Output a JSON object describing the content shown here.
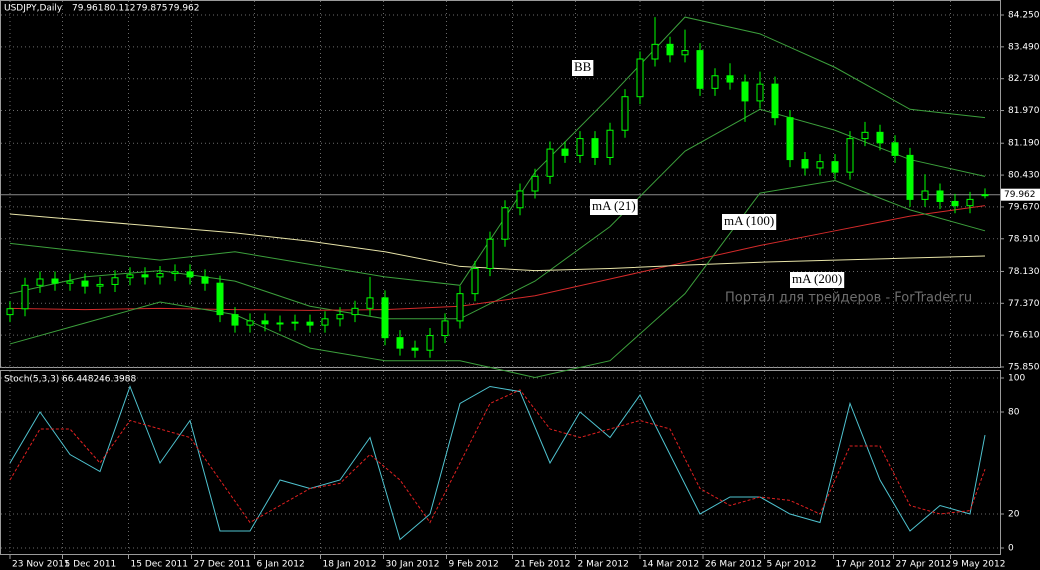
{
  "chart_data": [
    {
      "type": "candlestick",
      "title": "USDJPY,Daily",
      "open": [
        77.1,
        77.24,
        77.8,
        77.95,
        77.85,
        77.9,
        77.78,
        77.82,
        77.98,
        78.05,
        78.0,
        78.08,
        78.12,
        78.0,
        77.85,
        77.1,
        76.85,
        76.95,
        76.88,
        76.9,
        76.92,
        76.85,
        77.0,
        77.1,
        77.25,
        77.5,
        76.55,
        76.3,
        76.25,
        76.6,
        76.95,
        77.6,
        78.2,
        78.9,
        79.65,
        80.05,
        80.4,
        81.05,
        80.9,
        81.3,
        80.85,
        81.5,
        82.3,
        83.2,
        83.55,
        83.3,
        83.4,
        82.5,
        82.8,
        82.65,
        82.2,
        82.6,
        81.8,
        80.8,
        80.6,
        80.75,
        80.5,
        81.3,
        81.45,
        81.2,
        80.9,
        79.85,
        80.05,
        79.8,
        79.7,
        79.961
      ],
      "high": [
        77.42,
        77.98,
        78.13,
        78.13,
        78.08,
        78.08,
        78.0,
        78.16,
        78.23,
        78.23,
        78.26,
        78.3,
        78.3,
        78.18,
        78.03,
        77.28,
        77.13,
        77.13,
        77.08,
        77.1,
        77.1,
        77.18,
        77.28,
        77.43,
        78.0,
        77.68,
        76.73,
        76.48,
        76.78,
        77.13,
        77.78,
        78.38,
        79.08,
        79.83,
        80.23,
        80.58,
        81.23,
        81.23,
        81.48,
        81.48,
        81.68,
        82.48,
        83.38,
        84.2,
        83.73,
        83.9,
        83.58,
        82.98,
        83.1,
        82.83,
        82.9,
        82.78,
        81.98,
        80.98,
        80.93,
        80.93,
        81.48,
        81.7,
        81.63,
        81.38,
        81.08,
        80.45,
        80.23,
        79.98,
        80.03,
        80.112
      ],
      "low": [
        76.92,
        77.06,
        77.62,
        77.67,
        77.67,
        77.6,
        77.6,
        77.64,
        77.8,
        77.82,
        77.82,
        77.9,
        77.82,
        77.67,
        76.92,
        76.67,
        76.67,
        76.7,
        76.7,
        76.72,
        76.67,
        76.67,
        76.82,
        76.92,
        77.07,
        76.37,
        76.12,
        76.07,
        76.07,
        76.42,
        76.77,
        77.42,
        78.02,
        78.72,
        79.47,
        79.87,
        80.22,
        80.72,
        80.72,
        80.67,
        80.67,
        81.32,
        82.12,
        83.02,
        83.12,
        83.12,
        82.32,
        82.32,
        82.47,
        81.7,
        82.02,
        81.62,
        80.62,
        80.42,
        80.42,
        80.32,
        80.32,
        81.12,
        81.02,
        80.72,
        79.67,
        79.67,
        79.62,
        79.52,
        79.52,
        79.875
      ],
      "close": [
        77.24,
        77.8,
        77.95,
        77.85,
        77.9,
        77.78,
        77.82,
        77.98,
        78.05,
        78.0,
        78.08,
        78.12,
        78.0,
        77.85,
        77.1,
        76.85,
        76.95,
        76.88,
        76.9,
        76.92,
        76.85,
        77.0,
        77.1,
        77.25,
        77.5,
        76.55,
        76.3,
        76.25,
        76.6,
        76.95,
        77.6,
        78.2,
        78.9,
        79.65,
        80.05,
        80.4,
        81.05,
        80.9,
        81.3,
        80.85,
        81.5,
        82.3,
        83.2,
        83.55,
        83.3,
        83.4,
        82.5,
        82.8,
        82.65,
        82.2,
        82.6,
        81.8,
        80.8,
        80.6,
        80.75,
        80.5,
        81.3,
        81.45,
        81.2,
        80.9,
        79.85,
        80.05,
        79.8,
        79.7,
        79.85,
        79.962
      ],
      "up_color": "#000000",
      "down_color": "#00ff00",
      "wick_color": "#00ff00",
      "indicator_x": [
        0,
        5,
        10,
        15,
        20,
        25,
        30,
        35,
        40,
        45,
        50,
        55,
        60,
        65
      ],
      "indicators": [
        {
          "name": "mA (21)",
          "color": "#3ca03c",
          "values": [
            77.6,
            78.0,
            78.15,
            77.9,
            77.3,
            77.0,
            77.0,
            77.9,
            79.2,
            81.0,
            82.0,
            81.5,
            80.8,
            80.4
          ]
        },
        {
          "name": "mA (100)",
          "color": "#d42a2a",
          "values": [
            77.25,
            77.22,
            77.25,
            77.22,
            77.2,
            77.22,
            77.3,
            77.55,
            77.95,
            78.35,
            78.75,
            79.1,
            79.45,
            79.7
          ]
        },
        {
          "name": "mA (200)",
          "color": "#e8e4a8",
          "values": [
            79.5,
            79.35,
            79.2,
            79.05,
            78.85,
            78.6,
            78.25,
            78.15,
            78.2,
            78.28,
            78.35,
            78.4,
            78.45,
            78.5
          ]
        },
        {
          "name": "BB",
          "color": "#3ca03c",
          "upper": [
            78.8,
            78.6,
            78.4,
            78.6,
            78.3,
            78.0,
            77.8,
            80.5,
            82.3,
            84.2,
            83.8,
            83.0,
            82.0,
            81.8
          ],
          "lower": [
            76.4,
            76.9,
            77.4,
            77.1,
            76.3,
            76.0,
            76.0,
            75.6,
            76.0,
            77.6,
            80.0,
            80.3,
            79.6,
            79.1
          ]
        }
      ],
      "ylim": [
        75.85,
        84.25
      ],
      "yticks": [
        {
          "value": 84.25,
          "label": "84.250"
        },
        {
          "value": 83.49,
          "label": "83.490"
        },
        {
          "value": 82.73,
          "label": "82.730"
        },
        {
          "value": 81.97,
          "label": "81.970"
        },
        {
          "value": 81.19,
          "label": "81.190"
        },
        {
          "value": 80.43,
          "label": "80.430"
        },
        {
          "value": 79.67,
          "label": "79.670"
        },
        {
          "value": 78.91,
          "label": "78.910"
        },
        {
          "value": 78.13,
          "label": "78.130"
        },
        {
          "value": 77.37,
          "label": "77.370"
        },
        {
          "value": 76.61,
          "label": "76.610"
        },
        {
          "value": 75.85,
          "label": "75.850"
        }
      ],
      "grid": true,
      "watermark": "Портал для трейдеров - ForTrader.ru"
    },
    {
      "type": "line",
      "title": "Stoch(5,3,3)",
      "x": [
        0,
        2,
        4,
        6,
        8,
        10,
        12,
        14,
        16,
        18,
        20,
        22,
        24,
        26,
        28,
        30,
        32,
        34,
        36,
        38,
        40,
        42,
        44,
        46,
        48,
        50,
        52,
        54,
        56,
        58,
        60,
        62,
        64,
        65
      ],
      "series": [
        {
          "name": "Main",
          "color": "#4fc3d0",
          "values": [
            50,
            80,
            55,
            45,
            95,
            50,
            75,
            10,
            10,
            40,
            35,
            40,
            65,
            5,
            20,
            85,
            95,
            92,
            50,
            80,
            65,
            90,
            55,
            20,
            30,
            30,
            20,
            15,
            85,
            40,
            10,
            25,
            20,
            66.4482
          ]
        },
        {
          "name": "Signal",
          "color": "#e02020",
          "values": [
            40,
            70,
            70,
            50,
            75,
            70,
            65,
            40,
            15,
            25,
            35,
            38,
            55,
            40,
            15,
            50,
            85,
            93,
            70,
            65,
            70,
            75,
            70,
            35,
            25,
            30,
            28,
            20,
            60,
            60,
            25,
            20,
            22,
            46.3988
          ]
        }
      ],
      "ylim": [
        0,
        100
      ],
      "yticks": [
        100,
        80,
        20,
        0
      ],
      "xticks": [
        {
          "value": 0,
          "label": "23 Nov 2011"
        },
        {
          "value": 3.5,
          "label": "5 Dec 2011"
        },
        {
          "value": 7.9,
          "label": "15 Dec 2011"
        },
        {
          "value": 12.1,
          "label": "27 Dec 2011"
        },
        {
          "value": 16.3,
          "label": "6 Jan 2012"
        },
        {
          "value": 20.7,
          "label": "18 Jan 2012"
        },
        {
          "value": 24.9,
          "label": "30 Jan 2012"
        },
        {
          "value": 29.1,
          "label": "9 Feb 2012"
        },
        {
          "value": 33.5,
          "label": "21 Feb 2012"
        },
        {
          "value": 37.7,
          "label": "2 Mar 2012"
        },
        {
          "value": 42,
          "label": "14 Mar 2012"
        },
        {
          "value": 46.2,
          "label": "26 Mar 2012"
        },
        {
          "value": 50.3,
          "label": "5 Apr 2012"
        },
        {
          "value": 54.9,
          "label": "17 Apr 2012"
        },
        {
          "value": 58.9,
          "label": "27 Apr 2012"
        },
        {
          "value": 62.7,
          "label": "9 May 2012"
        }
      ]
    }
  ]
}
